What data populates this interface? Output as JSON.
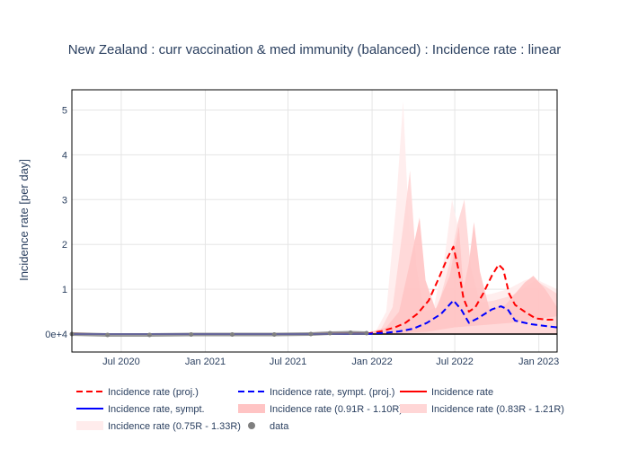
{
  "chart_data": {
    "type": "line",
    "title": "New Zealand : curr vaccination & med immunity (balanced) : Incidence rate : linear",
    "xlabel": "",
    "ylabel": "Incidence rate [per day]",
    "x_range": [
      "2020-03-15",
      "2023-02-10"
    ],
    "ylim": [
      -0.4,
      5.45
    ],
    "y_ticks": [
      {
        "value": 0,
        "label": "0e+4"
      },
      {
        "value": 1,
        "label": "1"
      },
      {
        "value": 2,
        "label": "2"
      },
      {
        "value": 3,
        "label": "3"
      },
      {
        "value": 4,
        "label": "4"
      },
      {
        "value": 5,
        "label": "5"
      }
    ],
    "x_ticks": [
      {
        "date": "2020-07-01",
        "label": "Jul 2020"
      },
      {
        "date": "2021-01-01",
        "label": "Jan 2021"
      },
      {
        "date": "2021-07-01",
        "label": "Jul 2021"
      },
      {
        "date": "2022-01-01",
        "label": "Jan 2022"
      },
      {
        "date": "2022-07-01",
        "label": "Jul 2022"
      },
      {
        "date": "2023-01-01",
        "label": "Jan 2023"
      }
    ],
    "grid": true,
    "legend_position": "bottom",
    "colors": {
      "proj": "#ff0000",
      "sympt": "#0000ff",
      "band_inner": "#ffc4c4",
      "band_mid": "#ffd6d6",
      "band_outer": "#ffecec",
      "data_marker": "#7f7f7f",
      "zero_line": "#000000"
    },
    "bands": [
      {
        "name": "Incidence rate (0.75R - 1.33R)",
        "upper": [
          [
            "2021-12-20",
            0.02
          ],
          [
            "2022-01-10",
            0.08
          ],
          [
            "2022-02-01",
            0.5
          ],
          [
            "2022-02-22",
            2.8
          ],
          [
            "2022-03-10",
            5.2
          ],
          [
            "2022-03-20",
            3.0
          ],
          [
            "2022-04-01",
            0.9
          ],
          [
            "2022-04-15",
            0.5
          ],
          [
            "2022-05-15",
            0.55
          ],
          [
            "2022-06-10",
            1.8
          ],
          [
            "2022-06-25",
            3.0
          ],
          [
            "2022-07-12",
            2.2
          ],
          [
            "2022-07-28",
            1.0
          ],
          [
            "2022-08-20",
            0.85
          ],
          [
            "2022-09-20",
            0.9
          ],
          [
            "2022-10-25",
            1.0
          ],
          [
            "2022-12-01",
            1.2
          ],
          [
            "2022-12-20",
            1.25
          ],
          [
            "2023-02-10",
            1.0
          ]
        ],
        "lower": [
          [
            "2021-12-20",
            0
          ],
          [
            "2023-02-10",
            0
          ]
        ]
      },
      {
        "name": "Incidence rate (0.83R - 1.21R)",
        "upper": [
          [
            "2021-12-20",
            0.02
          ],
          [
            "2022-01-20",
            0.1
          ],
          [
            "2022-02-15",
            0.6
          ],
          [
            "2022-03-10",
            2.4
          ],
          [
            "2022-03-25",
            3.65
          ],
          [
            "2022-04-08",
            1.5
          ],
          [
            "2022-04-25",
            0.5
          ],
          [
            "2022-05-25",
            0.6
          ],
          [
            "2022-06-20",
            1.6
          ],
          [
            "2022-07-08",
            2.5
          ],
          [
            "2022-07-22",
            3.0
          ],
          [
            "2022-08-05",
            1.5
          ],
          [
            "2022-08-25",
            0.7
          ],
          [
            "2022-09-25",
            0.75
          ],
          [
            "2022-11-01",
            0.85
          ],
          [
            "2022-12-10",
            1.1
          ],
          [
            "2022-12-25",
            1.2
          ],
          [
            "2023-02-10",
            0.9
          ]
        ],
        "lower": [
          [
            "2021-12-20",
            0
          ],
          [
            "2023-02-10",
            0
          ]
        ]
      },
      {
        "name": "Incidence rate (0.91R - 1.10R)",
        "upper": [
          [
            "2021-12-20",
            0.02
          ],
          [
            "2022-02-01",
            0.15
          ],
          [
            "2022-03-01",
            0.5
          ],
          [
            "2022-03-25",
            1.6
          ],
          [
            "2022-04-15",
            2.6
          ],
          [
            "2022-04-28",
            1.2
          ],
          [
            "2022-05-20",
            0.55
          ],
          [
            "2022-06-20",
            1.3
          ],
          [
            "2022-07-10",
            2.4
          ],
          [
            "2022-07-20",
            1.0
          ],
          [
            "2022-08-01",
            1.6
          ],
          [
            "2022-08-12",
            2.5
          ],
          [
            "2022-08-25",
            1.4
          ],
          [
            "2022-09-15",
            0.55
          ],
          [
            "2022-10-20",
            0.65
          ],
          [
            "2022-12-01",
            1.15
          ],
          [
            "2022-12-20",
            1.3
          ],
          [
            "2023-01-15",
            1.0
          ],
          [
            "2023-02-10",
            0.6
          ]
        ],
        "lower": [
          [
            "2021-12-20",
            0
          ],
          [
            "2022-03-01",
            0.02
          ],
          [
            "2022-05-01",
            0.05
          ],
          [
            "2022-07-01",
            0.15
          ],
          [
            "2022-09-01",
            0.2
          ],
          [
            "2022-11-01",
            0.25
          ],
          [
            "2023-02-10",
            0.4
          ]
        ]
      }
    ],
    "series": [
      {
        "name": "Incidence rate (proj.)",
        "style": "dash",
        "values": [
          [
            "2021-12-20",
            0.01
          ],
          [
            "2022-01-20",
            0.06
          ],
          [
            "2022-02-20",
            0.15
          ],
          [
            "2022-03-15",
            0.25
          ],
          [
            "2022-04-10",
            0.45
          ],
          [
            "2022-05-05",
            0.75
          ],
          [
            "2022-05-25",
            1.2
          ],
          [
            "2022-06-15",
            1.7
          ],
          [
            "2022-06-28",
            1.95
          ],
          [
            "2022-07-10",
            1.4
          ],
          [
            "2022-07-20",
            0.8
          ],
          [
            "2022-08-01",
            0.5
          ],
          [
            "2022-08-15",
            0.6
          ],
          [
            "2022-09-01",
            0.9
          ],
          [
            "2022-09-20",
            1.3
          ],
          [
            "2022-10-05",
            1.55
          ],
          [
            "2022-10-15",
            1.45
          ],
          [
            "2022-10-28",
            0.9
          ],
          [
            "2022-11-10",
            0.65
          ],
          [
            "2022-12-01",
            0.5
          ],
          [
            "2022-12-25",
            0.35
          ],
          [
            "2023-01-20",
            0.32
          ],
          [
            "2023-02-10",
            0.32
          ]
        ]
      },
      {
        "name": "Incidence rate, sympt. (proj.)",
        "style": "dash",
        "values": [
          [
            "2021-12-20",
            0.01
          ],
          [
            "2022-02-01",
            0.03
          ],
          [
            "2022-03-01",
            0.06
          ],
          [
            "2022-04-01",
            0.12
          ],
          [
            "2022-05-01",
            0.25
          ],
          [
            "2022-06-01",
            0.45
          ],
          [
            "2022-06-28",
            0.75
          ],
          [
            "2022-07-15",
            0.55
          ],
          [
            "2022-08-01",
            0.25
          ],
          [
            "2022-08-20",
            0.35
          ],
          [
            "2022-09-20",
            0.55
          ],
          [
            "2022-10-10",
            0.62
          ],
          [
            "2022-10-25",
            0.55
          ],
          [
            "2022-11-10",
            0.3
          ],
          [
            "2022-12-15",
            0.22
          ],
          [
            "2023-01-15",
            0.18
          ],
          [
            "2023-02-10",
            0.15
          ]
        ]
      },
      {
        "name": "Incidence rate",
        "style": "solid",
        "values": [
          [
            "2020-03-15",
            0.01
          ],
          [
            "2020-05-01",
            0.0
          ],
          [
            "2021-08-15",
            0.0
          ],
          [
            "2021-11-01",
            0.015
          ],
          [
            "2021-12-01",
            0.02
          ],
          [
            "2022-01-01",
            0.01
          ]
        ]
      },
      {
        "name": "Incidence rate, sympt.",
        "style": "solid",
        "values": [
          [
            "2020-03-15",
            0.0
          ],
          [
            "2020-05-01",
            0.0
          ],
          [
            "2021-08-15",
            0.0
          ],
          [
            "2021-11-01",
            0.005
          ],
          [
            "2021-12-01",
            0.01
          ],
          [
            "2022-01-01",
            0.005
          ]
        ]
      },
      {
        "name": "data",
        "style": "markers",
        "values": [
          [
            "2020-03-15",
            0.0
          ],
          [
            "2020-06-01",
            -0.02
          ],
          [
            "2020-09-01",
            -0.02
          ],
          [
            "2020-12-01",
            -0.01
          ],
          [
            "2021-03-01",
            -0.01
          ],
          [
            "2021-06-01",
            -0.01
          ],
          [
            "2021-08-20",
            0.0
          ],
          [
            "2021-10-01",
            0.02
          ],
          [
            "2021-11-15",
            0.03
          ],
          [
            "2021-12-20",
            0.02
          ]
        ]
      }
    ],
    "legend": [
      {
        "label": "Incidence rate (proj.)",
        "kind": "dash-red"
      },
      {
        "label": "Incidence rate, sympt. (proj.)",
        "kind": "dash-blue"
      },
      {
        "label": "Incidence rate",
        "kind": "solid-red"
      },
      {
        "label": "Incidence rate, sympt.",
        "kind": "solid-blue"
      },
      {
        "label": "Incidence rate (0.91R - 1.10R)",
        "kind": "band-inner"
      },
      {
        "label": "Incidence rate (0.83R - 1.21R)",
        "kind": "band-mid"
      },
      {
        "label": "Incidence rate (0.75R - 1.33R)",
        "kind": "band-outer"
      },
      {
        "label": "data",
        "kind": "marker"
      }
    ]
  }
}
